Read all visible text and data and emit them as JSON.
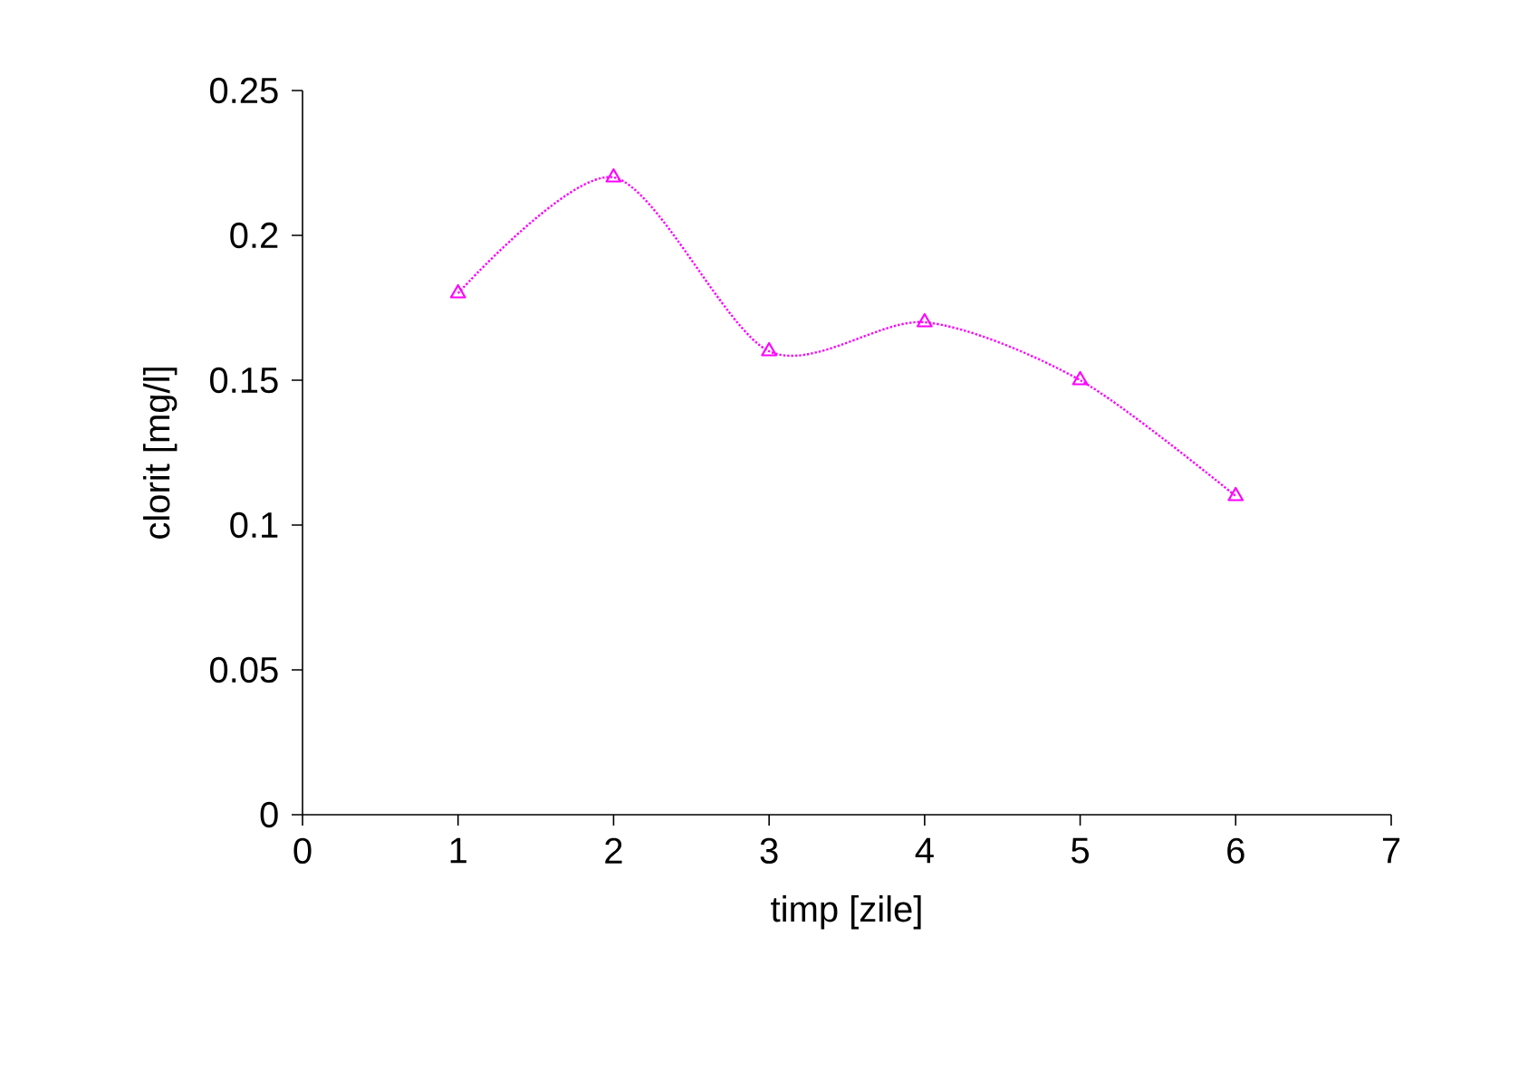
{
  "chart_data": {
    "type": "line",
    "xlabel": "timp [zile]",
    "ylabel": "clorit  [mg/l]",
    "x": [
      1,
      2,
      3,
      4,
      5,
      6
    ],
    "series": [
      {
        "color": "#ff00ff",
        "values": [
          0.18,
          0.22,
          0.16,
          0.17,
          0.15,
          0.11
        ]
      }
    ],
    "xlim": [
      0,
      7
    ],
    "xticks": [
      0,
      1,
      2,
      3,
      4,
      5,
      6,
      7
    ],
    "ylim": [
      0,
      0.25
    ],
    "yticks": [
      0,
      0.05,
      0.1,
      0.15,
      0.2,
      0.25
    ],
    "marker": "triangle",
    "line_style": "dotted"
  }
}
